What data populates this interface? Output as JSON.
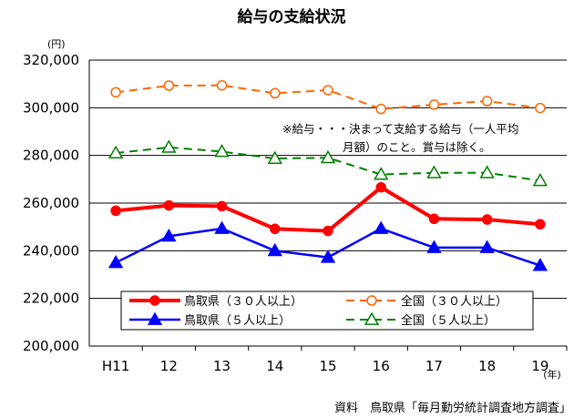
{
  "chart_data": {
    "type": "line",
    "title": "給与の支給状況",
    "y_unit": "(円)",
    "x_unit": "(年)",
    "categories": [
      "H11",
      "12",
      "13",
      "14",
      "15",
      "16",
      "17",
      "18",
      "19"
    ],
    "ylim": [
      200000,
      320000
    ],
    "yticks": [
      "320,000",
      "300,000",
      "280,000",
      "260,000",
      "240,000",
      "220,000",
      "200,000"
    ],
    "ytick_values": [
      320000,
      300000,
      280000,
      260000,
      240000,
      220000,
      200000
    ],
    "grid": "horizontal",
    "series": [
      {
        "name": "鳥取県（３０人以上）",
        "color": "#ff0000",
        "style": "solid-thick",
        "marker": "filled-circle",
        "values": [
          256800,
          259000,
          258700,
          249200,
          248300,
          266600,
          253400,
          253100,
          251100
        ]
      },
      {
        "name": "全国（３０人以上）",
        "color": "#ff6600",
        "style": "dashed",
        "marker": "open-circle",
        "values": [
          306500,
          309300,
          309400,
          306100,
          307400,
          299500,
          301300,
          302800,
          299900
        ]
      },
      {
        "name": "鳥取県（５人以上）",
        "color": "#0000ff",
        "style": "solid",
        "marker": "filled-triangle",
        "values": [
          235000,
          246100,
          249300,
          240000,
          237200,
          249300,
          241300,
          241300,
          233800
        ]
      },
      {
        "name": "全国（５人以上）",
        "color": "#008000",
        "style": "dashed",
        "marker": "open-triangle",
        "values": [
          281000,
          283400,
          281600,
          278700,
          279000,
          272000,
          272700,
          272700,
          269400
        ]
      }
    ],
    "legend_position": "bottom-inside",
    "annotation": [
      "※給与・・・決まって支給する給与（一人平均",
      "月額）のこと。賞与は除く。"
    ],
    "source": "資料　鳥取県「毎月勤労統計調査地方調査」"
  }
}
